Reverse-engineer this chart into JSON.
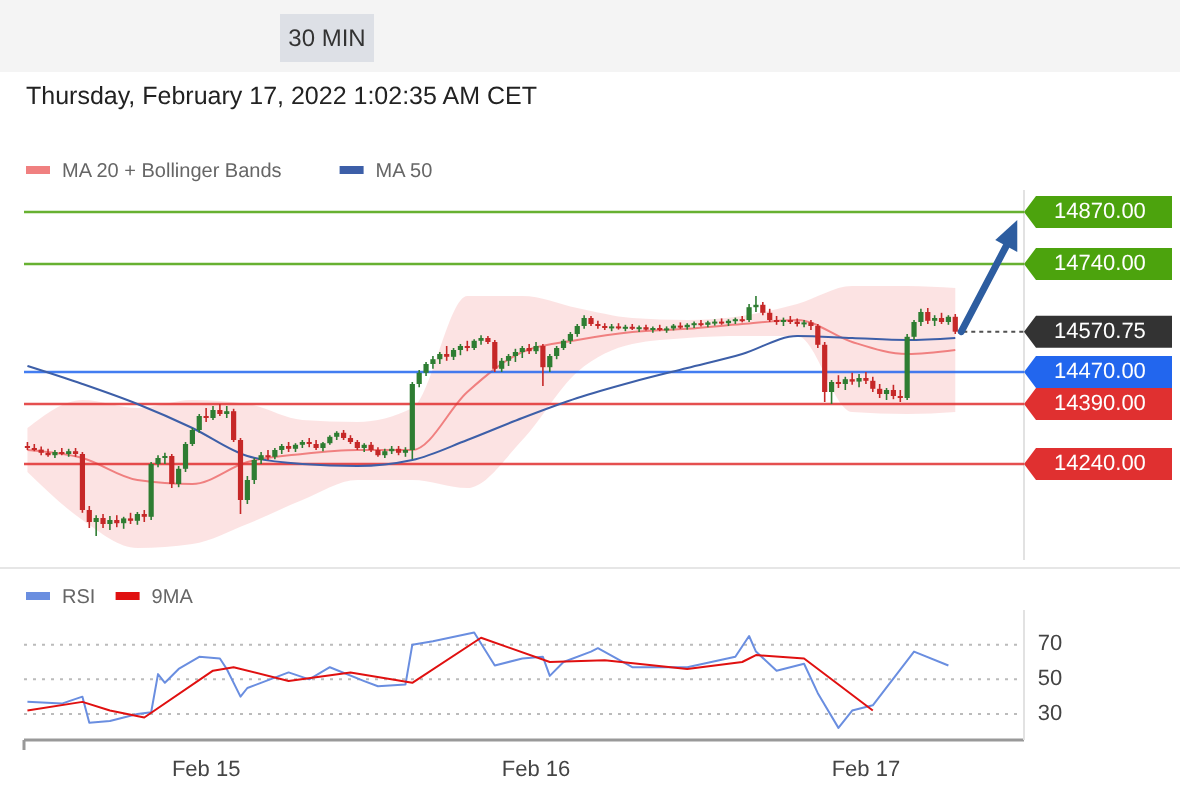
{
  "chart_data": [
    {
      "type": "candlestick",
      "subtitle": "Thursday, February 17, 2022 1:02:35 AM CET",
      "annotations": [
        "30 MIN"
      ],
      "legend": "top left",
      "tick_labels": false,
      "xlim": [
        "2022-02-14T10:45",
        "2022-02-17T11:30"
      ],
      "ylim": [
        14000,
        14925
      ],
      "x": [
        "2022-02-14T11:00",
        "2022-02-14T11:30",
        "2022-02-14T12:00",
        "2022-02-14T12:30",
        "2022-02-14T13:00",
        "2022-02-14T13:30",
        "2022-02-14T14:00",
        "2022-02-14T14:30",
        "2022-02-14T15:00",
        "2022-02-14T15:30",
        "2022-02-14T16:00",
        "2022-02-14T16:30",
        "2022-02-14T17:00",
        "2022-02-14T17:30",
        "2022-02-14T18:00",
        "2022-02-14T18:30",
        "2022-02-14T19:00",
        "2022-02-14T19:30",
        "2022-02-14T20:00",
        "2022-02-14T20:30",
        "2022-02-14T21:00",
        "2022-02-14T21:30",
        "2022-02-14T22:00",
        "2022-02-14T22:30",
        "2022-02-14T23:00",
        "2022-02-14T23:30",
        "2022-02-15T00:00",
        "2022-02-15T00:30",
        "2022-02-15T01:00",
        "2022-02-15T01:30",
        "2022-02-15T02:00",
        "2022-02-15T02:30",
        "2022-02-15T03:00",
        "2022-02-15T03:30",
        "2022-02-15T04:00",
        "2022-02-15T04:30",
        "2022-02-15T05:00",
        "2022-02-15T05:30",
        "2022-02-15T06:00",
        "2022-02-15T06:30",
        "2022-02-15T07:00",
        "2022-02-15T07:30",
        "2022-02-15T08:00",
        "2022-02-15T08:30",
        "2022-02-15T09:00",
        "2022-02-15T09:30",
        "2022-02-15T10:00",
        "2022-02-15T10:30",
        "2022-02-15T11:00",
        "2022-02-15T11:30",
        "2022-02-15T12:00",
        "2022-02-15T12:30",
        "2022-02-15T13:00",
        "2022-02-15T13:30",
        "2022-02-15T14:00",
        "2022-02-15T14:30",
        "2022-02-15T15:00",
        "2022-02-15T15:30",
        "2022-02-15T16:00",
        "2022-02-15T16:30",
        "2022-02-15T17:00",
        "2022-02-15T17:30",
        "2022-02-15T18:00",
        "2022-02-15T18:30",
        "2022-02-15T19:00",
        "2022-02-15T19:30",
        "2022-02-15T20:00",
        "2022-02-15T20:30",
        "2022-02-15T21:00",
        "2022-02-15T21:30",
        "2022-02-15T22:00",
        "2022-02-15T22:30",
        "2022-02-15T23:00",
        "2022-02-15T23:30",
        "2022-02-16T00:00",
        "2022-02-16T00:30",
        "2022-02-16T01:00",
        "2022-02-16T01:30",
        "2022-02-16T02:00",
        "2022-02-16T02:30",
        "2022-02-16T03:00",
        "2022-02-16T03:30",
        "2022-02-16T04:00",
        "2022-02-16T04:30",
        "2022-02-16T05:00",
        "2022-02-16T05:30",
        "2022-02-16T06:00",
        "2022-02-16T06:30",
        "2022-02-16T07:00",
        "2022-02-16T07:30",
        "2022-02-16T08:00",
        "2022-02-16T08:30",
        "2022-02-16T09:00",
        "2022-02-16T09:30",
        "2022-02-16T10:00",
        "2022-02-16T10:30",
        "2022-02-16T11:00",
        "2022-02-16T11:30",
        "2022-02-16T12:00",
        "2022-02-16T12:30",
        "2022-02-16T13:00",
        "2022-02-16T13:30",
        "2022-02-16T14:00",
        "2022-02-16T14:30",
        "2022-02-16T15:00",
        "2022-02-16T15:30",
        "2022-02-16T16:00",
        "2022-02-16T16:30",
        "2022-02-16T17:00",
        "2022-02-16T17:30",
        "2022-02-16T18:00",
        "2022-02-16T18:30",
        "2022-02-16T19:00",
        "2022-02-16T19:30",
        "2022-02-16T20:00",
        "2022-02-16T20:30",
        "2022-02-16T21:00",
        "2022-02-16T21:30",
        "2022-02-16T22:00",
        "2022-02-16T22:30",
        "2022-02-16T23:00",
        "2022-02-16T23:30",
        "2022-02-17T00:00",
        "2022-02-17T00:30",
        "2022-02-17T01:00",
        "2022-02-17T01:30",
        "2022-02-17T02:00",
        "2022-02-17T02:30",
        "2022-02-17T03:00",
        "2022-02-17T03:30",
        "2022-02-17T04:00",
        "2022-02-17T04:30",
        "2022-02-17T05:00",
        "2022-02-17T05:30",
        "2022-02-17T06:00",
        "2022-02-17T06:30"
      ],
      "ohlc": [
        [
          14285,
          14295,
          14275,
          14280
        ],
        [
          14280,
          14290,
          14272,
          14276
        ],
        [
          14276,
          14284,
          14262,
          14268
        ],
        [
          14268,
          14278,
          14258,
          14262
        ],
        [
          14262,
          14275,
          14255,
          14270
        ],
        [
          14270,
          14280,
          14262,
          14265
        ],
        [
          14265,
          14278,
          14258,
          14272
        ],
        [
          14272,
          14280,
          14258,
          14265
        ],
        [
          14265,
          14270,
          14118,
          14125
        ],
        [
          14125,
          14135,
          14080,
          14095
        ],
        [
          14095,
          14112,
          14060,
          14105
        ],
        [
          14105,
          14115,
          14080,
          14090
        ],
        [
          14090,
          14110,
          14075,
          14100
        ],
        [
          14100,
          14112,
          14082,
          14092
        ],
        [
          14092,
          14108,
          14078,
          14104
        ],
        [
          14104,
          14118,
          14090,
          14098
        ],
        [
          14098,
          14120,
          14088,
          14115
        ],
        [
          14115,
          14125,
          14095,
          14108
        ],
        [
          14108,
          14245,
          14100,
          14240
        ],
        [
          14240,
          14262,
          14232,
          14255
        ],
        [
          14255,
          14268,
          14240,
          14260
        ],
        [
          14260,
          14265,
          14180,
          14190
        ],
        [
          14190,
          14235,
          14182,
          14228
        ],
        [
          14228,
          14295,
          14220,
          14290
        ],
        [
          14290,
          14330,
          14285,
          14325
        ],
        [
          14325,
          14365,
          14318,
          14360
        ],
        [
          14360,
          14380,
          14345,
          14355
        ],
        [
          14355,
          14385,
          14350,
          14375
        ],
        [
          14375,
          14390,
          14360,
          14365
        ],
        [
          14365,
          14385,
          14355,
          14372
        ],
        [
          14372,
          14378,
          14295,
          14300
        ],
        [
          14300,
          14305,
          14115,
          14150
        ],
        [
          14150,
          14210,
          14140,
          14200
        ],
        [
          14200,
          14255,
          14190,
          14250
        ],
        [
          14250,
          14270,
          14240,
          14262
        ],
        [
          14262,
          14275,
          14250,
          14258
        ],
        [
          14258,
          14280,
          14252,
          14275
        ],
        [
          14275,
          14290,
          14265,
          14285
        ],
        [
          14285,
          14295,
          14270,
          14278
        ],
        [
          14278,
          14292,
          14270,
          14288
        ],
        [
          14288,
          14300,
          14280,
          14295
        ],
        [
          14295,
          14305,
          14282,
          14290
        ],
        [
          14290,
          14300,
          14275,
          14280
        ],
        [
          14280,
          14295,
          14272,
          14292
        ],
        [
          14292,
          14312,
          14288,
          14308
        ],
        [
          14308,
          14322,
          14300,
          14318
        ],
        [
          14318,
          14325,
          14300,
          14305
        ],
        [
          14305,
          14312,
          14290,
          14295
        ],
        [
          14295,
          14300,
          14275,
          14280
        ],
        [
          14280,
          14292,
          14270,
          14288
        ],
        [
          14288,
          14295,
          14270,
          14275
        ],
        [
          14275,
          14282,
          14258,
          14262
        ],
        [
          14262,
          14278,
          14255,
          14272
        ],
        [
          14272,
          14285,
          14265,
          14278
        ],
        [
          14278,
          14285,
          14262,
          14268
        ],
        [
          14268,
          14282,
          14258,
          14275
        ],
        [
          14275,
          14445,
          14252,
          14440
        ],
        [
          14440,
          14475,
          14432,
          14468
        ],
        [
          14468,
          14495,
          14460,
          14490
        ],
        [
          14490,
          14510,
          14478,
          14502
        ],
        [
          14502,
          14520,
          14490,
          14515
        ],
        [
          14515,
          14535,
          14498,
          14508
        ],
        [
          14508,
          14530,
          14500,
          14525
        ],
        [
          14525,
          14540,
          14512,
          14535
        ],
        [
          14535,
          14548,
          14522,
          14530
        ],
        [
          14530,
          14552,
          14525,
          14548
        ],
        [
          14548,
          14562,
          14538,
          14555
        ],
        [
          14555,
          14560,
          14540,
          14545
        ],
        [
          14545,
          14550,
          14470,
          14478
        ],
        [
          14478,
          14505,
          14470,
          14498
        ],
        [
          14498,
          14515,
          14485,
          14510
        ],
        [
          14510,
          14528,
          14495,
          14520
        ],
        [
          14520,
          14535,
          14505,
          14530
        ],
        [
          14530,
          14540,
          14515,
          14522
        ],
        [
          14522,
          14545,
          14515,
          14535
        ],
        [
          14535,
          14540,
          14435,
          14482
        ],
        [
          14482,
          14515,
          14470,
          14510
        ],
        [
          14510,
          14535,
          14502,
          14530
        ],
        [
          14530,
          14552,
          14525,
          14548
        ],
        [
          14548,
          14570,
          14540,
          14565
        ],
        [
          14565,
          14590,
          14558,
          14585
        ],
        [
          14585,
          14612,
          14578,
          14605
        ],
        [
          14605,
          14610,
          14585,
          14590
        ],
        [
          14590,
          14598,
          14578,
          14585
        ],
        [
          14585,
          14592,
          14575,
          14580
        ],
        [
          14580,
          14590,
          14572,
          14584
        ],
        [
          14584,
          14592,
          14576,
          14580
        ],
        [
          14580,
          14588,
          14572,
          14583
        ],
        [
          14583,
          14590,
          14575,
          14578
        ],
        [
          14578,
          14586,
          14570,
          14582
        ],
        [
          14582,
          14588,
          14574,
          14576
        ],
        [
          14576,
          14584,
          14568,
          14580
        ],
        [
          14580,
          14588,
          14572,
          14575
        ],
        [
          14575,
          14584,
          14568,
          14579
        ],
        [
          14579,
          14590,
          14574,
          14586
        ],
        [
          14586,
          14594,
          14578,
          14582
        ],
        [
          14582,
          14592,
          14576,
          14588
        ],
        [
          14588,
          14596,
          14580,
          14592
        ],
        [
          14592,
          14600,
          14584,
          14588
        ],
        [
          14588,
          14598,
          14582,
          14594
        ],
        [
          14594,
          14602,
          14586,
          14596
        ],
        [
          14596,
          14604,
          14588,
          14592
        ],
        [
          14592,
          14602,
          14585,
          14598
        ],
        [
          14598,
          14606,
          14590,
          14602
        ],
        [
          14602,
          14610,
          14594,
          14600
        ],
        [
          14600,
          14640,
          14595,
          14632
        ],
        [
          14632,
          14660,
          14620,
          14638
        ],
        [
          14638,
          14645,
          14612,
          14618
        ],
        [
          14618,
          14628,
          14595,
          14600
        ],
        [
          14600,
          14610,
          14588,
          14595
        ],
        [
          14595,
          14606,
          14585,
          14600
        ],
        [
          14600,
          14610,
          14590,
          14596
        ],
        [
          14596,
          14604,
          14584,
          14590
        ],
        [
          14590,
          14600,
          14582,
          14594
        ],
        [
          14594,
          14600,
          14575,
          14585
        ],
        [
          14585,
          14590,
          14530,
          14538
        ],
        [
          14538,
          14545,
          14395,
          14420
        ],
        [
          14420,
          14450,
          14390,
          14445
        ],
        [
          14445,
          14462,
          14430,
          14440
        ],
        [
          14440,
          14458,
          14425,
          14452
        ],
        [
          14452,
          14468,
          14438,
          14446
        ],
        [
          14446,
          14465,
          14432,
          14455
        ],
        [
          14455,
          14470,
          14440,
          14448
        ],
        [
          14448,
          14458,
          14420,
          14428
        ],
        [
          14428,
          14440,
          14405,
          14415
        ],
        [
          14415,
          14430,
          14400,
          14425
        ],
        [
          14425,
          14438,
          14402,
          14410
        ],
        [
          14410,
          14425,
          14395,
          14405
        ],
        [
          14405,
          14565,
          14400,
          14558
        ],
        [
          14558,
          14600,
          14550,
          14595
        ],
        [
          14595,
          14628,
          14585,
          14620
        ],
        [
          14620,
          14630,
          14590,
          14598
        ],
        [
          14598,
          14612,
          14585,
          14605
        ],
        [
          14605,
          14618,
          14590,
          14595
        ],
        [
          14595,
          14612,
          14588,
          14608
        ],
        [
          14608,
          14615,
          14565,
          14570.75
        ]
      ],
      "series": [
        {
          "type": "line",
          "name": "MA 20 + Bollinger Bands",
          "color": "#f08080",
          "x": [
            "2022-02-14T11:00",
            "2022-02-14T15:00",
            "2022-02-14T19:00",
            "2022-02-14T23:00",
            "2022-02-15T03:00",
            "2022-02-15T07:00",
            "2022-02-15T11:00",
            "2022-02-15T15:00",
            "2022-02-15T19:00",
            "2022-02-15T23:00",
            "2022-02-16T03:00",
            "2022-02-16T07:00",
            "2022-02-16T11:00",
            "2022-02-16T15:00",
            "2022-02-16T19:00",
            "2022-02-16T23:00",
            "2022-02-17T03:00",
            "2022-02-17T06:30"
          ],
          "values": [
            14275,
            14255,
            14200,
            14190,
            14245,
            14265,
            14275,
            14275,
            14420,
            14520,
            14550,
            14570,
            14578,
            14590,
            14600,
            14545,
            14515,
            14525
          ],
          "upper": [
            14330,
            14400,
            14380,
            14400,
            14390,
            14350,
            14345,
            14380,
            14660,
            14660,
            14630,
            14605,
            14600,
            14610,
            14640,
            14685,
            14685,
            14680
          ],
          "lower": [
            14220,
            14100,
            14030,
            14040,
            14090,
            14150,
            14200,
            14200,
            14180,
            14300,
            14470,
            14540,
            14555,
            14560,
            14560,
            14370,
            14365,
            14370
          ]
        },
        {
          "type": "line",
          "name": "MA 50",
          "color": "#3d5fa8",
          "x": [
            "2022-02-14T11:00",
            "2022-02-14T15:00",
            "2022-02-14T19:00",
            "2022-02-14T23:00",
            "2022-02-15T03:00",
            "2022-02-15T07:00",
            "2022-02-15T11:00",
            "2022-02-15T15:00",
            "2022-02-15T19:00",
            "2022-02-15T23:00",
            "2022-02-16T03:00",
            "2022-02-16T07:00",
            "2022-02-16T11:00",
            "2022-02-16T15:00",
            "2022-02-16T19:00",
            "2022-02-16T23:00",
            "2022-02-17T03:00",
            "2022-02-17T06:30"
          ],
          "values": [
            14485,
            14440,
            14390,
            14330,
            14260,
            14240,
            14235,
            14250,
            14300,
            14355,
            14405,
            14445,
            14480,
            14515,
            14560,
            14555,
            14550,
            14555
          ]
        }
      ],
      "ref_lines": [
        {
          "axis": "y",
          "value": 14870,
          "label": "14870.00",
          "color": "#4ca30d"
        },
        {
          "axis": "y",
          "value": 14740,
          "label": "14740.00",
          "color": "#4ca30d"
        },
        {
          "axis": "y",
          "value": 14570.75,
          "label": "14570.75",
          "color": "#333333",
          "line_style": "dotted"
        },
        {
          "axis": "y",
          "value": 14470,
          "label": "14470.00",
          "color": "#2266ee"
        },
        {
          "axis": "y",
          "value": 14390,
          "label": "14390.00",
          "color": "#e03030"
        },
        {
          "axis": "y",
          "value": 14240,
          "label": "14240.00",
          "color": "#e03030"
        }
      ]
    },
    {
      "type": "line",
      "legend": "top left",
      "grid": "y",
      "xlim": [
        "2022-02-14T10:45",
        "2022-02-17T11:30"
      ],
      "ylim": [
        15,
        90
      ],
      "yticks": [
        70,
        50,
        30
      ],
      "xticks": [
        {
          "value": "2022-02-15T00:00",
          "label": "Feb 15"
        },
        {
          "value": "2022-02-16T00:00",
          "label": "Feb 16"
        },
        {
          "value": "2022-02-17T00:00",
          "label": "Feb 17"
        }
      ],
      "series": [
        {
          "name": "RSI",
          "color": "#6a8ee0",
          "x": [
            "2022-02-14T11:00",
            "2022-02-14T13:30",
            "2022-02-14T15:00",
            "2022-02-14T15:30",
            "2022-02-14T17:00",
            "2022-02-14T19:00",
            "2022-02-14T20:00",
            "2022-02-14T20:30",
            "2022-02-14T21:00",
            "2022-02-14T22:00",
            "2022-02-14T23:30",
            "2022-02-15T01:00",
            "2022-02-15T01:30",
            "2022-02-15T02:30",
            "2022-02-15T03:00",
            "2022-02-15T06:00",
            "2022-02-15T07:30",
            "2022-02-15T09:00",
            "2022-02-15T11:30",
            "2022-02-15T12:30",
            "2022-02-15T14:30",
            "2022-02-15T15:00",
            "2022-02-15T16:30",
            "2022-02-15T19:30",
            "2022-02-15T21:00",
            "2022-02-15T23:00",
            "2022-02-16T00:30",
            "2022-02-16T01:00",
            "2022-02-16T02:00",
            "2022-02-16T04:00",
            "2022-02-16T04:30",
            "2022-02-16T07:00",
            "2022-02-16T11:00",
            "2022-02-16T14:30",
            "2022-02-16T15:30",
            "2022-02-16T16:00",
            "2022-02-16T17:30",
            "2022-02-16T19:30",
            "2022-02-16T20:30",
            "2022-02-16T22:00",
            "2022-02-16T23:00",
            "2022-02-17T00:30",
            "2022-02-17T03:30",
            "2022-02-17T06:00"
          ],
          "values": [
            37,
            36,
            40,
            25,
            26,
            30,
            31,
            53,
            48,
            56,
            63,
            62,
            56,
            40,
            45,
            54,
            50,
            57,
            49,
            46,
            47,
            70,
            72,
            77,
            58,
            62,
            63,
            52,
            60,
            66,
            68,
            57,
            57,
            63,
            75,
            66,
            55,
            59,
            42,
            22,
            32,
            35,
            66,
            58
          ]
        },
        {
          "name": "9MA",
          "color": "#e01010",
          "x": [
            "2022-02-14T11:00",
            "2022-02-14T15:00",
            "2022-02-14T17:00",
            "2022-02-14T19:30",
            "2022-02-15T00:30",
            "2022-02-15T02:00",
            "2022-02-15T06:00",
            "2022-02-15T10:30",
            "2022-02-15T15:00",
            "2022-02-15T20:00",
            "2022-02-16T01:00",
            "2022-02-16T05:00",
            "2022-02-16T11:00",
            "2022-02-16T15:00",
            "2022-02-16T16:00",
            "2022-02-16T19:30",
            "2022-02-17T00:30"
          ],
          "values": [
            32,
            37,
            32,
            28,
            55,
            57,
            49,
            54,
            48,
            74,
            60,
            61,
            56,
            60,
            64,
            62,
            32
          ]
        }
      ]
    }
  ]
}
